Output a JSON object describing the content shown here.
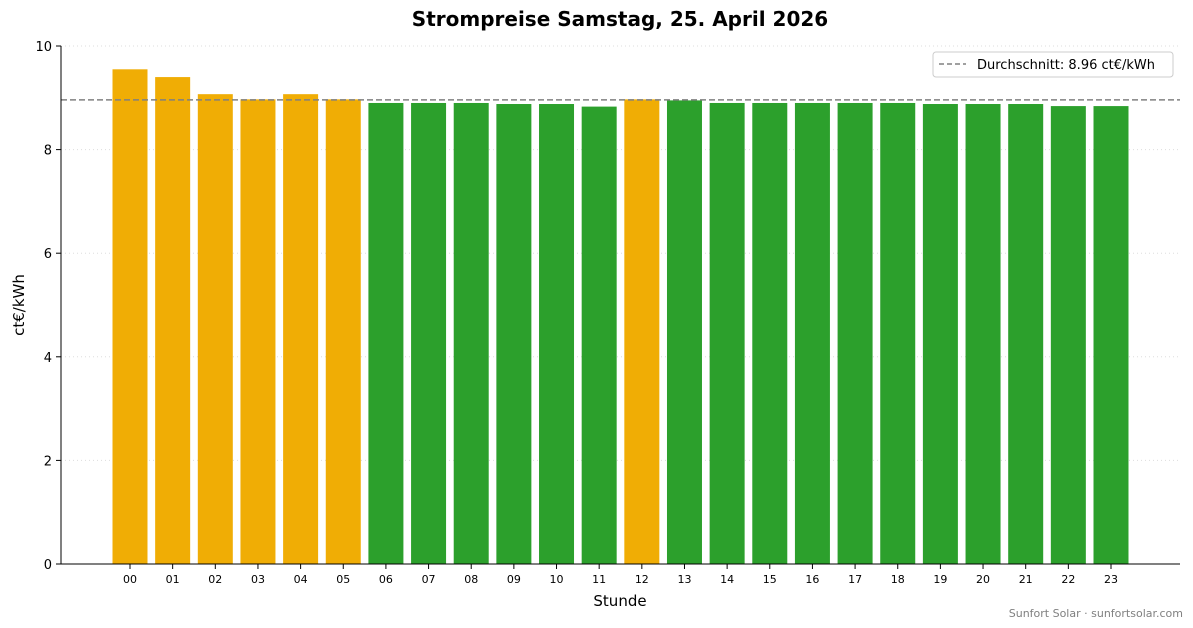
{
  "chart_data": {
    "type": "bar",
    "title": "Strompreise Samstag, 25. April 2026",
    "xlabel": "Stunde",
    "ylabel": "ct€/kWh",
    "ylim": [
      0,
      10
    ],
    "yticks": [
      "0",
      "2",
      "4",
      "6",
      "8",
      "10"
    ],
    "categories": [
      "00",
      "01",
      "02",
      "03",
      "04",
      "05",
      "06",
      "07",
      "08",
      "09",
      "10",
      "11",
      "12",
      "13",
      "14",
      "15",
      "16",
      "17",
      "18",
      "19",
      "20",
      "21",
      "22",
      "23"
    ],
    "values": [
      9.55,
      9.4,
      9.07,
      8.97,
      9.07,
      8.97,
      8.9,
      8.9,
      8.9,
      8.88,
      8.88,
      8.83,
      8.97,
      8.95,
      8.9,
      8.9,
      8.9,
      8.9,
      8.9,
      8.88,
      8.88,
      8.88,
      8.84,
      8.84
    ],
    "average": 8.96,
    "legend_label": "Durchschnitt: 8.96 ct€/kWh",
    "legend_position": "top-right",
    "grid": "horizontal-dotted",
    "colors": {
      "above_average": "#f0ad05",
      "below_average": "#2ca02c",
      "average_line": "#808080",
      "grid": "#dddddd"
    }
  },
  "footer": "Sunfort Solar · sunfortsolar.com"
}
